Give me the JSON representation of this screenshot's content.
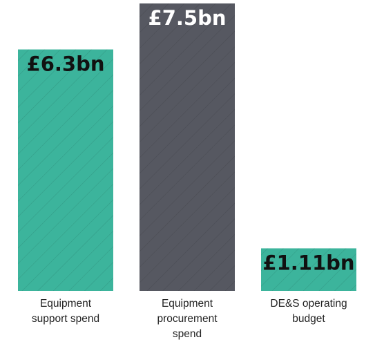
{
  "chart_data": {
    "type": "bar",
    "categories": [
      [
        "Equipment",
        "support spend"
      ],
      [
        "Equipment",
        "procurement",
        "spend"
      ],
      [
        "DE&S operating",
        "budget"
      ]
    ],
    "values": [
      6.3,
      7.5,
      1.11
    ],
    "value_labels": [
      "£6.3bn",
      "£7.5bn",
      "£1.11bn"
    ],
    "colors": [
      "#3cb49c",
      "#565861",
      "#3cb49c"
    ],
    "label_colors": [
      "#111111",
      "#ffffff",
      "#111111"
    ],
    "unit": "£bn",
    "ylim": [
      0,
      7.5
    ],
    "grid": false,
    "bar_pattern": "diagonal-hatch"
  }
}
